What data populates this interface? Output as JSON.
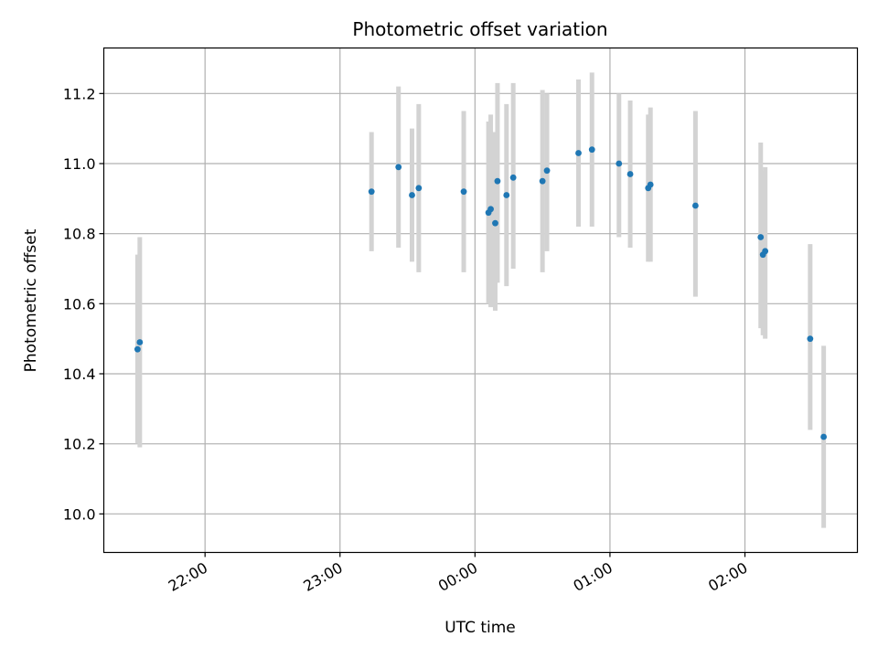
{
  "chart_data": {
    "type": "scatter",
    "title": "Photometric offset variation",
    "xlabel": "UTC time",
    "ylabel": "Photometric offset",
    "grid": true,
    "x_axis": {
      "kind": "time",
      "range": [
        "21:15",
        "02:50"
      ],
      "ticks": [
        "22:00",
        "23:00",
        "00:00",
        "01:00",
        "02:00"
      ],
      "tick_label_rotation": "diagonal"
    },
    "y_axis": {
      "range": [
        9.89,
        11.33
      ],
      "ticks": [
        10.0,
        10.2,
        10.4,
        10.6,
        10.8,
        11.0,
        11.2
      ],
      "tick_labels": [
        "10.0",
        "10.2",
        "10.4",
        "10.6",
        "10.8",
        "11.0",
        "11.2"
      ]
    },
    "series": [
      {
        "marker_color": "#1f77b4",
        "errorbar_color": "#d3d3d3",
        "points": [
          {
            "x": "21:30",
            "y": 10.47,
            "y_low": 10.2,
            "y_high": 10.74
          },
          {
            "x": "21:31",
            "y": 10.49,
            "y_low": 10.19,
            "y_high": 10.79
          },
          {
            "x": "23:14",
            "y": 10.92,
            "y_low": 10.75,
            "y_high": 11.09
          },
          {
            "x": "23:26",
            "y": 10.99,
            "y_low": 10.76,
            "y_high": 11.22
          },
          {
            "x": "23:32",
            "y": 10.91,
            "y_low": 10.72,
            "y_high": 11.1
          },
          {
            "x": "23:35",
            "y": 10.93,
            "y_low": 10.69,
            "y_high": 11.17
          },
          {
            "x": "23:55",
            "y": 10.92,
            "y_low": 10.69,
            "y_high": 11.15
          },
          {
            "x": "00:06",
            "y": 10.86,
            "y_low": 10.6,
            "y_high": 11.12
          },
          {
            "x": "00:07",
            "y": 10.87,
            "y_low": 10.59,
            "y_high": 11.14
          },
          {
            "x": "00:09",
            "y": 10.83,
            "y_low": 10.58,
            "y_high": 11.09
          },
          {
            "x": "00:10",
            "y": 10.95,
            "y_low": 10.66,
            "y_high": 11.23
          },
          {
            "x": "00:14",
            "y": 10.91,
            "y_low": 10.65,
            "y_high": 11.17
          },
          {
            "x": "00:17",
            "y": 10.96,
            "y_low": 10.7,
            "y_high": 11.23
          },
          {
            "x": "00:30",
            "y": 10.95,
            "y_low": 10.69,
            "y_high": 11.21
          },
          {
            "x": "00:32",
            "y": 10.98,
            "y_low": 10.75,
            "y_high": 11.2
          },
          {
            "x": "00:46",
            "y": 11.03,
            "y_low": 10.82,
            "y_high": 11.24
          },
          {
            "x": "00:52",
            "y": 11.04,
            "y_low": 10.82,
            "y_high": 11.26
          },
          {
            "x": "01:04",
            "y": 11.0,
            "y_low": 10.79,
            "y_high": 11.2
          },
          {
            "x": "01:09",
            "y": 10.97,
            "y_low": 10.76,
            "y_high": 11.18
          },
          {
            "x": "01:17",
            "y": 10.93,
            "y_low": 10.72,
            "y_high": 11.14
          },
          {
            "x": "01:18",
            "y": 10.94,
            "y_low": 10.72,
            "y_high": 11.16
          },
          {
            "x": "01:38",
            "y": 10.88,
            "y_low": 10.62,
            "y_high": 11.15
          },
          {
            "x": "02:07",
            "y": 10.79,
            "y_low": 10.53,
            "y_high": 11.06
          },
          {
            "x": "02:08",
            "y": 10.74,
            "y_low": 10.51,
            "y_high": 10.98
          },
          {
            "x": "02:09",
            "y": 10.75,
            "y_low": 10.5,
            "y_high": 10.99
          },
          {
            "x": "02:29",
            "y": 10.5,
            "y_low": 10.24,
            "y_high": 10.77
          },
          {
            "x": "02:35",
            "y": 10.22,
            "y_low": 9.96,
            "y_high": 10.48
          }
        ]
      }
    ]
  }
}
